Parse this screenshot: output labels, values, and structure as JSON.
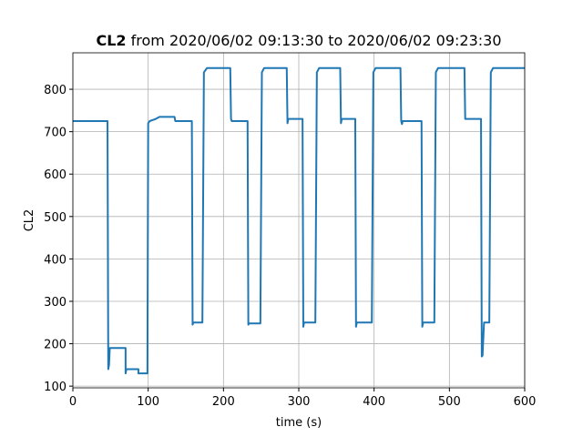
{
  "chart_data": {
    "type": "line",
    "title": {
      "name": "CL2",
      "range": "from 2020/06/02 09:13:30 to 2020/06/02 09:23:30"
    },
    "x_label": "time (s)",
    "y_label": "CL2",
    "x": [
      0,
      46,
      47,
      48,
      49,
      70,
      70,
      71,
      87,
      87,
      99,
      100,
      102,
      110,
      115,
      135,
      136,
      158,
      159,
      160,
      172,
      174,
      178,
      209,
      210,
      211,
      232,
      233,
      234,
      249,
      251,
      254,
      284,
      285,
      286,
      305,
      306,
      307,
      322,
      324,
      327,
      355,
      356,
      357,
      375,
      376,
      377,
      397,
      399,
      402,
      435,
      436,
      437,
      438,
      463,
      464,
      465,
      480,
      482,
      485,
      520,
      521,
      542,
      543,
      544,
      546,
      553,
      555,
      558,
      600
    ],
    "series": [
      {
        "name": "CL2",
        "color": "#1f77b4",
        "values": [
          725,
          725,
          140,
          150,
          190,
          190,
          130,
          140,
          140,
          130,
          130,
          720,
          725,
          730,
          735,
          735,
          725,
          725,
          245,
          250,
          250,
          840,
          850,
          850,
          730,
          725,
          725,
          245,
          248,
          248,
          840,
          850,
          850,
          720,
          730,
          730,
          240,
          250,
          250,
          840,
          850,
          850,
          720,
          730,
          730,
          240,
          250,
          250,
          840,
          850,
          850,
          725,
          718,
          725,
          725,
          240,
          250,
          250,
          840,
          850,
          850,
          730,
          730,
          170,
          172,
          250,
          250,
          840,
          850,
          850
        ]
      }
    ],
    "xlim": [
      0,
      600
    ],
    "ylim": [
      96,
      886
    ],
    "xticks": [
      0,
      100,
      200,
      300,
      400,
      500,
      600
    ],
    "yticks": [
      100,
      200,
      300,
      400,
      500,
      600,
      700,
      800
    ],
    "grid": true
  }
}
